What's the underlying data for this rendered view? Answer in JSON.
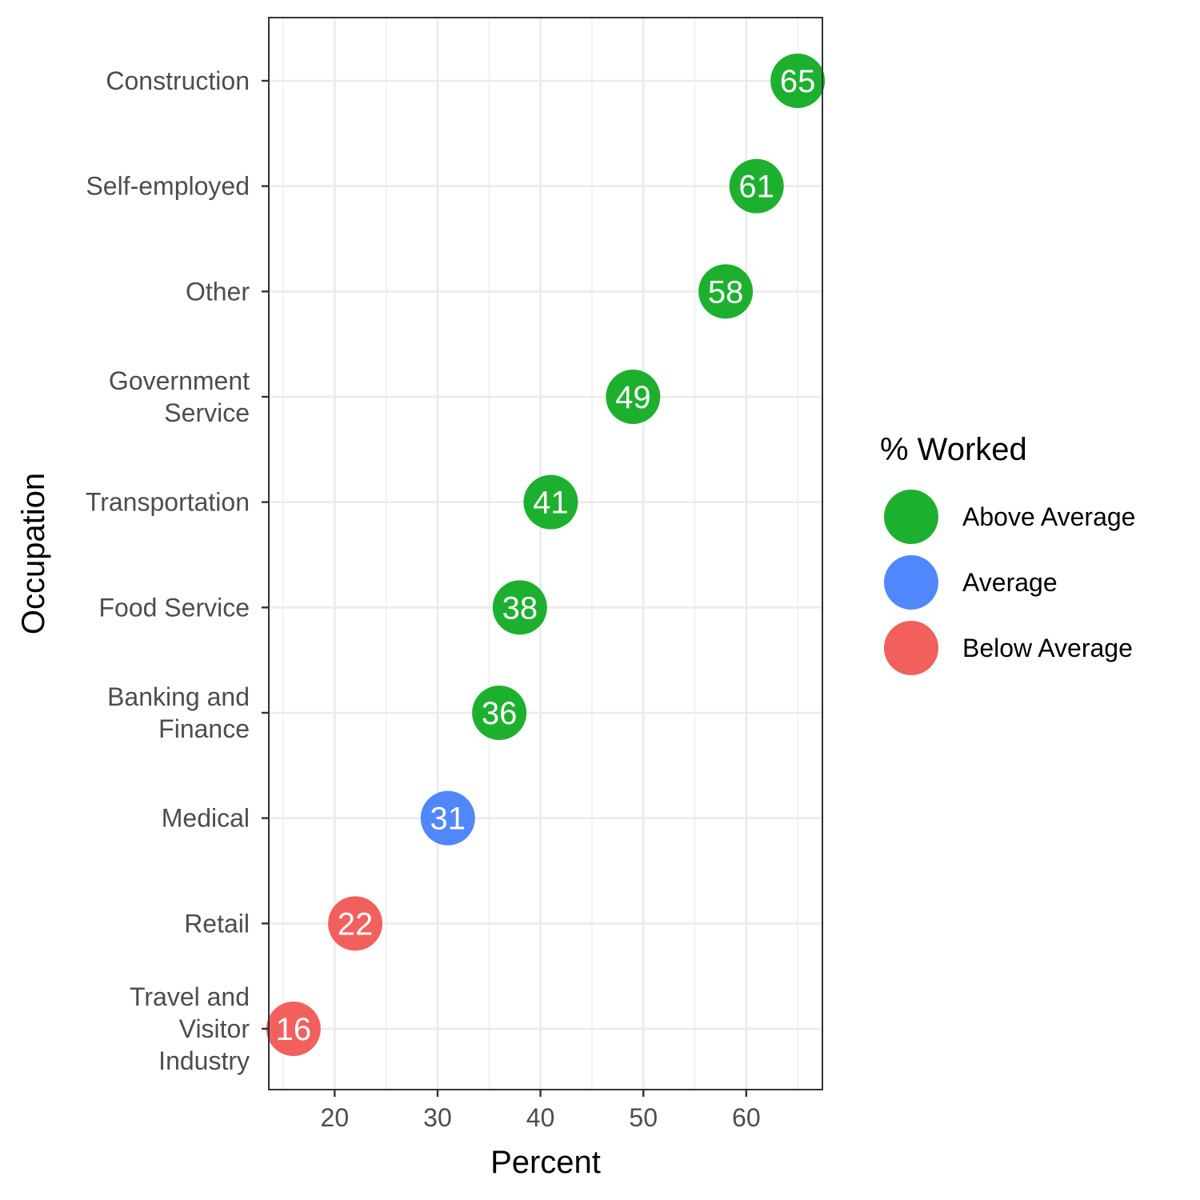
{
  "chart_data": {
    "type": "scatter",
    "xlabel": "Percent",
    "ylabel": "Occupation",
    "xlim": [
      13.6,
      67.4
    ],
    "xticks": [
      20,
      30,
      40,
      50,
      60
    ],
    "grid": true,
    "legend": {
      "title": "% Worked",
      "position": "right",
      "entries": [
        {
          "label": "Above Average",
          "color": "#1db02f"
        },
        {
          "label": "Average",
          "color": "#5087fd"
        },
        {
          "label": "Below Average",
          "color": "#f2605e"
        }
      ]
    },
    "points": [
      {
        "category": "Construction",
        "lines": [
          "Construction"
        ],
        "value": 65,
        "label": "65",
        "group": "Above Average"
      },
      {
        "category": "Self-employed",
        "lines": [
          "Self-employed"
        ],
        "value": 61,
        "label": "61",
        "group": "Above Average"
      },
      {
        "category": "Other",
        "lines": [
          "Other"
        ],
        "value": 58,
        "label": "58",
        "group": "Above Average"
      },
      {
        "category": "Government Service",
        "lines": [
          "Government",
          "Service"
        ],
        "value": 49,
        "label": "49",
        "group": "Above Average"
      },
      {
        "category": "Transportation",
        "lines": [
          "Transportation"
        ],
        "value": 41,
        "label": "41",
        "group": "Above Average"
      },
      {
        "category": "Food Service",
        "lines": [
          "Food Service"
        ],
        "value": 38,
        "label": "38",
        "group": "Above Average"
      },
      {
        "category": "Banking and Finance",
        "lines": [
          "Banking and",
          "Finance"
        ],
        "value": 36,
        "label": "36",
        "group": "Above Average"
      },
      {
        "category": "Medical",
        "lines": [
          "Medical"
        ],
        "value": 31,
        "label": "31",
        "group": "Average"
      },
      {
        "category": "Retail",
        "lines": [
          "Retail"
        ],
        "value": 22,
        "label": "22",
        "group": "Below Average"
      },
      {
        "category": "Travel and Visitor Industry",
        "lines": [
          "Travel and",
          "Visitor",
          "Industry"
        ],
        "value": 16,
        "label": "16",
        "group": "Below Average"
      }
    ]
  }
}
